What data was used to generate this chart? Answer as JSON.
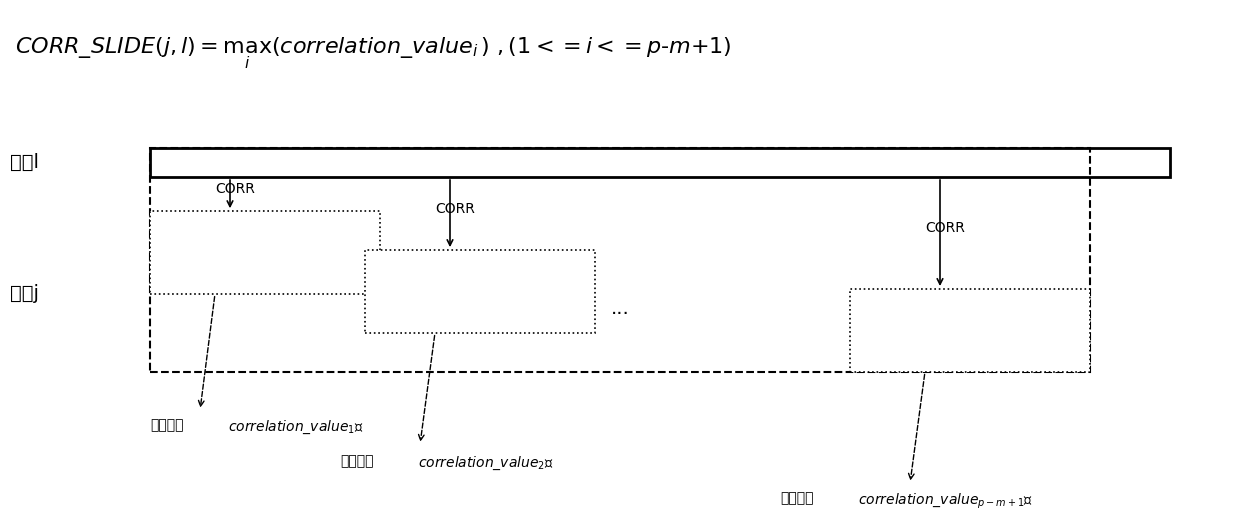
{
  "title_formula": "CORR\\_SLIDE(j,l) = max(correlation\\_value$_i$),(1<=i<=p-m+1)",
  "bg_color": "#ffffff",
  "seq_l_label": "序列l",
  "seq_j_label": "序列j",
  "corr_label": "CORR",
  "dots": "...",
  "label1": "相关值（correlation_value$_1$）",
  "label2": "相关值（correlation_value$_2$）",
  "label3": "相关值（correlation_value$_{p-m+1}$）",
  "fig_width": 12.4,
  "fig_height": 5.12
}
